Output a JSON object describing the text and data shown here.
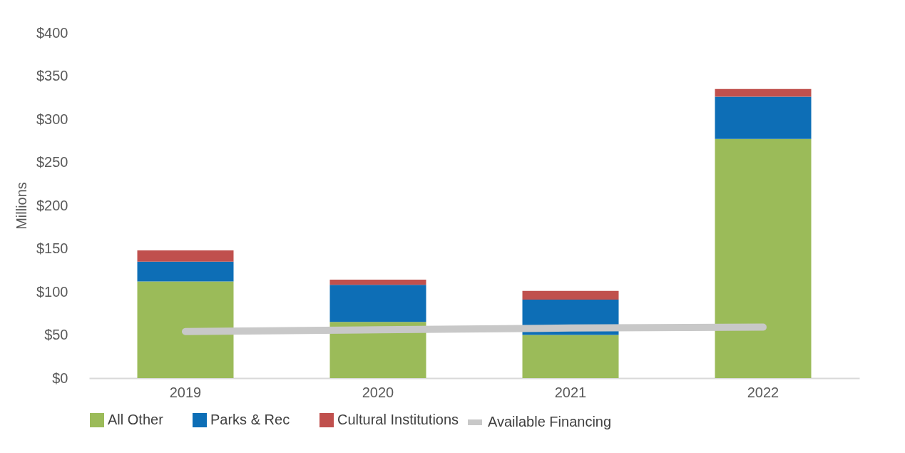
{
  "chart_data": {
    "type": "bar",
    "stacked": true,
    "ylabel": "Millions",
    "categories": [
      "2019",
      "2020",
      "2021",
      "2022"
    ],
    "series": [
      {
        "name": "All Other",
        "color": "#9bbb59",
        "values": [
          112,
          65,
          50,
          277
        ]
      },
      {
        "name": "Parks & Rec",
        "color": "#0d6eb6",
        "values": [
          23,
          43,
          41,
          49
        ]
      },
      {
        "name": "Cultural Institutions",
        "color": "#c0504d",
        "values": [
          13,
          6,
          10,
          9
        ]
      },
      {
        "name": "Available Financing",
        "type": "line",
        "color": "#c8c8c8",
        "values": [
          54,
          56,
          58,
          59
        ]
      }
    ],
    "ylim": [
      0,
      400
    ],
    "yticks": [
      {
        "value": 0,
        "label": "$0"
      },
      {
        "value": 50,
        "label": "$50"
      },
      {
        "value": 100,
        "label": "$100"
      },
      {
        "value": 150,
        "label": "$150"
      },
      {
        "value": 200,
        "label": "$200"
      },
      {
        "value": 250,
        "label": "$250"
      },
      {
        "value": 300,
        "label": "$300"
      },
      {
        "value": 350,
        "label": "$350"
      },
      {
        "value": 400,
        "label": "$400"
      }
    ],
    "grid": false,
    "legend": "bottom"
  }
}
